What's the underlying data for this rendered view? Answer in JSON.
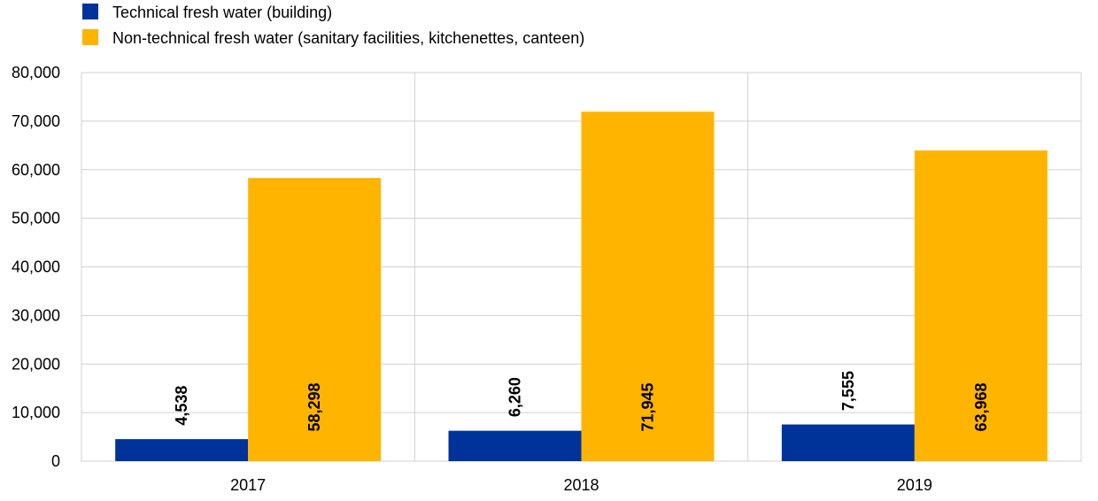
{
  "chart_data": {
    "type": "bar",
    "categories": [
      "2017",
      "2018",
      "2019"
    ],
    "series": [
      {
        "name": "Technical fresh water (building)",
        "color": "#003399",
        "values": [
          4538,
          6260,
          7555
        ],
        "labels": [
          "4,538",
          "6,260",
          "7,555"
        ]
      },
      {
        "name": "Non-technical fresh water (sanitary facilities, kitchenettes, canteen)",
        "color": "#ffb400",
        "values": [
          58298,
          71945,
          63968
        ],
        "labels": [
          "58,298",
          "71,945",
          "63,968"
        ]
      }
    ],
    "ylim": [
      0,
      80000
    ],
    "yticks": [
      0,
      10000,
      20000,
      30000,
      40000,
      50000,
      60000,
      70000,
      80000
    ],
    "ytick_labels": [
      "0",
      "10,000",
      "20,000",
      "30,000",
      "40,000",
      "50,000",
      "60,000",
      "70,000",
      "80,000"
    ],
    "title": "",
    "xlabel": "",
    "ylabel": "",
    "grid": true,
    "legend_position": "top-left"
  }
}
